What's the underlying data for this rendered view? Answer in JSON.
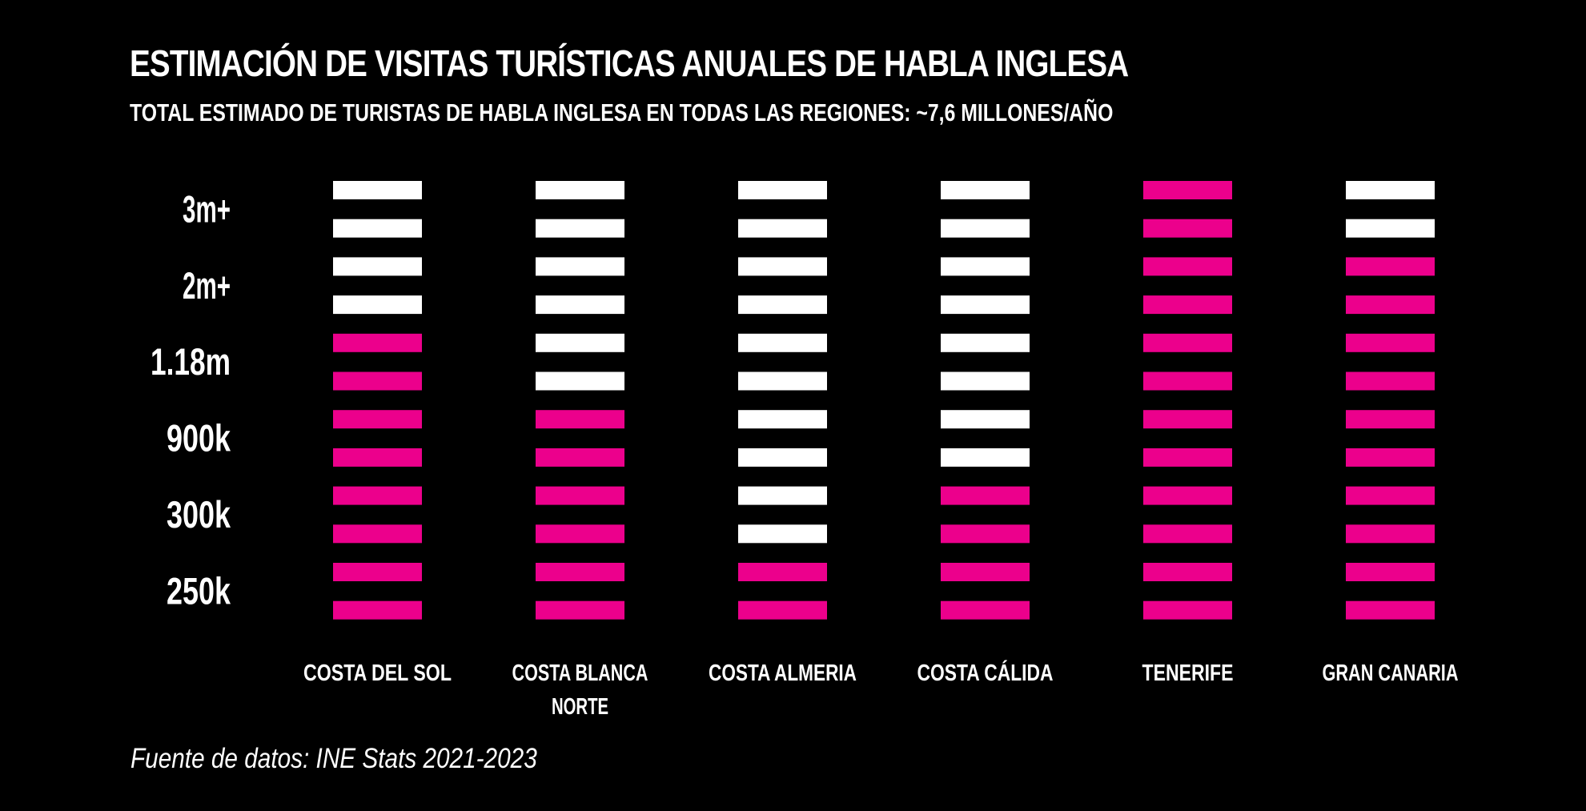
{
  "header": {
    "title": "ESTIMACIÓN DE VISITAS TURÍSTICAS ANUALES DE HABLA INGLESA",
    "subtitle": "TOTAL ESTIMADO DE TURISTAS DE HABLA INGLESA EN TODAS LAS REGIONES: ~7,6 MILLONES/AÑO"
  },
  "footer": {
    "source": "Fuente de datos: INE Stats 2021-2023"
  },
  "colors": {
    "filled": "#EC008C",
    "empty": "#FFFFFF",
    "background": "#000000"
  },
  "chart_data": {
    "type": "bar",
    "title": "ESTIMACIÓN DE VISITAS TURÍSTICAS ANUALES DE HABLA INGLESA",
    "xlabel": "",
    "ylabel": "",
    "y_tick_labels": [
      "3m+",
      "2m+",
      "1.18m",
      "900k",
      "300k",
      "250k"
    ],
    "total_segments": 12,
    "categories": [
      {
        "label": [
          "COSTA DEL SOL"
        ],
        "filled_segments": 8
      },
      {
        "label": [
          "COSTA BLANCA",
          "NORTE"
        ],
        "filled_segments": 6
      },
      {
        "label": [
          "COSTA ALMERIA"
        ],
        "filled_segments": 2
      },
      {
        "label": [
          "COSTA CÁLIDA"
        ],
        "filled_segments": 4
      },
      {
        "label": [
          "TENERIFE"
        ],
        "filled_segments": 12
      },
      {
        "label": [
          "GRAN CANARIA"
        ],
        "filled_segments": 10
      }
    ]
  }
}
